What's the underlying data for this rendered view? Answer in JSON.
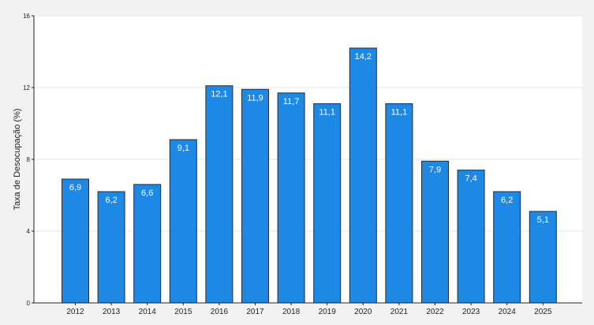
{
  "chart_data": {
    "type": "bar",
    "categories": [
      "2012",
      "2013",
      "2014",
      "2015",
      "2016",
      "2017",
      "2018",
      "2019",
      "2020",
      "2021",
      "2022",
      "2023",
      "2024",
      "2025"
    ],
    "values": [
      6.9,
      6.2,
      6.6,
      9.1,
      12.1,
      11.9,
      11.7,
      11.1,
      14.2,
      11.1,
      7.9,
      7.4,
      6.2,
      5.1
    ],
    "value_labels": [
      "6,9",
      "6,2",
      "6,6",
      "9,1",
      "12,1",
      "11,9",
      "11,7",
      "11,1",
      "14,2",
      "11,1",
      "7,9",
      "7,4",
      "6,2",
      "5,1"
    ],
    "title": "",
    "xlabel": "",
    "ylabel": "Taxa de Desocupação (%)",
    "ylim": [
      0,
      16
    ],
    "yticks": [
      0,
      4,
      8,
      12,
      16
    ],
    "ytick_labels": [
      "0",
      "4",
      "8",
      "12",
      "16"
    ],
    "grid": "horizontal",
    "colors": {
      "background": "#f2f2f2",
      "panel": "#ffffff",
      "bar_fill": "#1e88e5",
      "bar_stroke": "#2b2b2b",
      "grid": "#e6e6e6",
      "axis": "#222222",
      "value_label": "#ffffff",
      "tick_label": "#222222"
    }
  }
}
